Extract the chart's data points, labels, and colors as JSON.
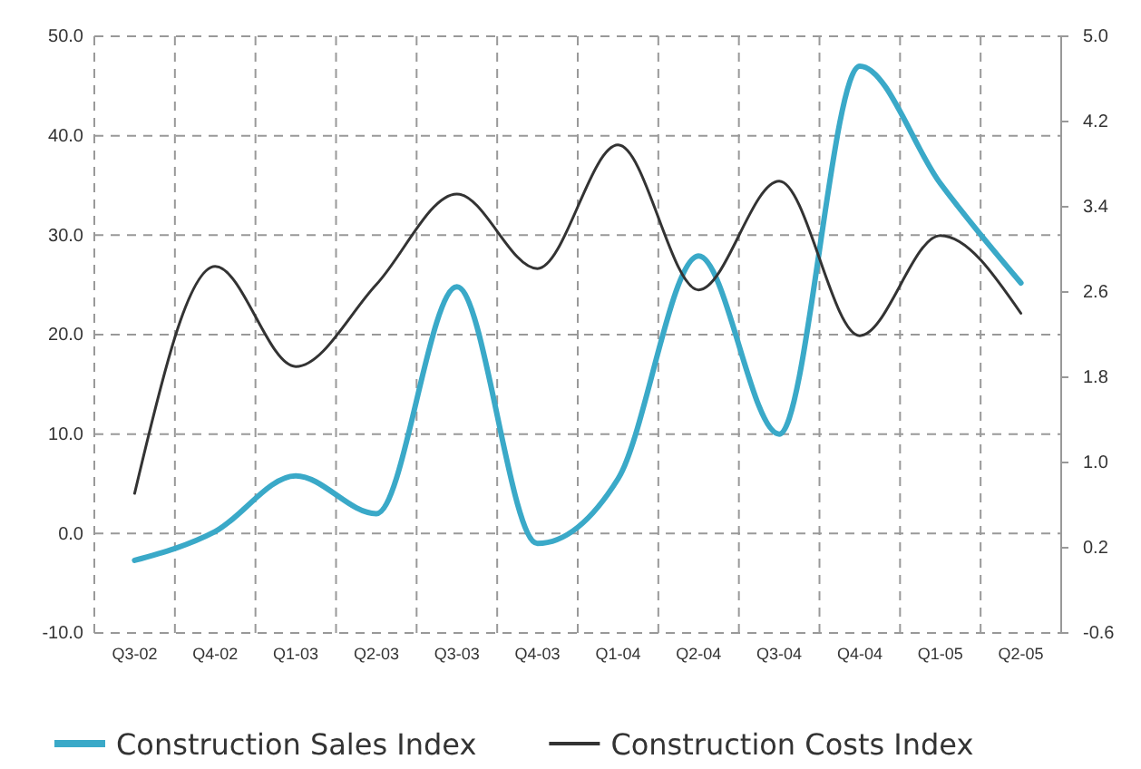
{
  "chart_data": {
    "type": "line",
    "categories": [
      "Q3-02",
      "Q4-02",
      "Q1-03",
      "Q2-03",
      "Q3-03",
      "Q4-03",
      "Q1-04",
      "Q2-04",
      "Q3-04",
      "Q4-04",
      "Q1-05",
      "Q2-05"
    ],
    "series": [
      {
        "name": "Construction Sales Index",
        "color": "#3aa9c8",
        "values": [
          -2.7,
          0.2,
          5.8,
          2.0,
          24.8,
          -1.0,
          5.5,
          27.9,
          10.0,
          47.0,
          35.2,
          25.2
        ]
      },
      {
        "name": "Construction Costs Index",
        "color": "#333333",
        "axis": "y2",
        "values": [
          0.71,
          2.84,
          1.9,
          2.67,
          3.52,
          2.82,
          3.98,
          2.62,
          3.64,
          2.19,
          3.13,
          2.4
        ]
      }
    ],
    "ylim": [
      -10,
      50
    ],
    "yticks": [
      {
        "value": -10,
        "label": "-10.0"
      },
      {
        "value": 0,
        "label": "0.0"
      },
      {
        "value": 10,
        "label": "10.0"
      },
      {
        "value": 20,
        "label": "20.0"
      },
      {
        "value": 30,
        "label": "30.0"
      },
      {
        "value": 40,
        "label": "40.0"
      },
      {
        "value": 50,
        "label": "50.0"
      }
    ],
    "y2lim": [
      -0.6,
      5.0
    ],
    "y2ticks": [
      -0.6,
      0.2,
      {
        "value": 1,
        "label": "1.0"
      },
      1.8,
      2.6,
      3.4,
      4.2,
      {
        "value": 5,
        "label": "5.0"
      }
    ],
    "grid": true,
    "legend": "bottom",
    "marker": "none",
    "line_style": "solid"
  }
}
